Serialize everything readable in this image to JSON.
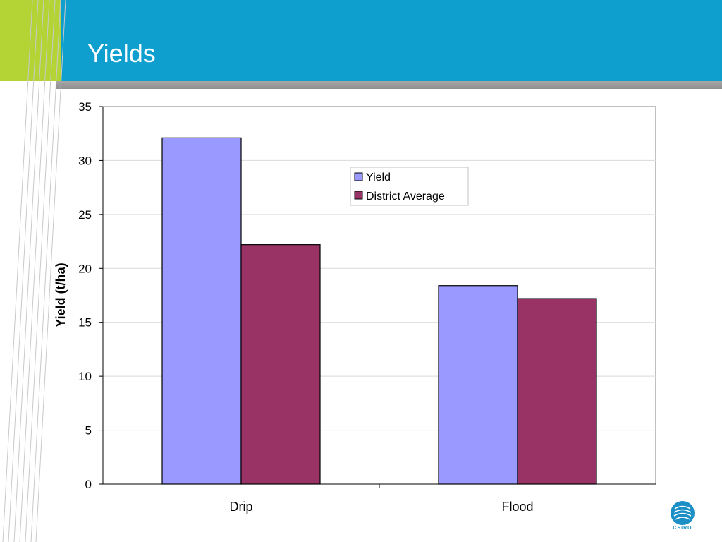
{
  "slide": {
    "title": "Yields",
    "logo_text": "CSIRO"
  },
  "colors": {
    "header_blue": "#0e9fcf",
    "header_green": "#b4d335",
    "series_yield": "#9999ff",
    "series_district": "#993366"
  },
  "chart_data": {
    "type": "bar",
    "categories": [
      "Drip",
      "Flood"
    ],
    "series": [
      {
        "name": "Yield",
        "values": [
          32.1,
          18.4
        ],
        "color": "#9999ff"
      },
      {
        "name": "District Average",
        "values": [
          22.2,
          17.2
        ],
        "color": "#993366"
      }
    ],
    "ylabel": "Yield (t/ha)",
    "xlabel": "",
    "ylim": [
      0,
      35
    ],
    "yticks": [
      0,
      5,
      10,
      15,
      20,
      25,
      30,
      35
    ],
    "grid": true,
    "legend_position": "top-right"
  }
}
